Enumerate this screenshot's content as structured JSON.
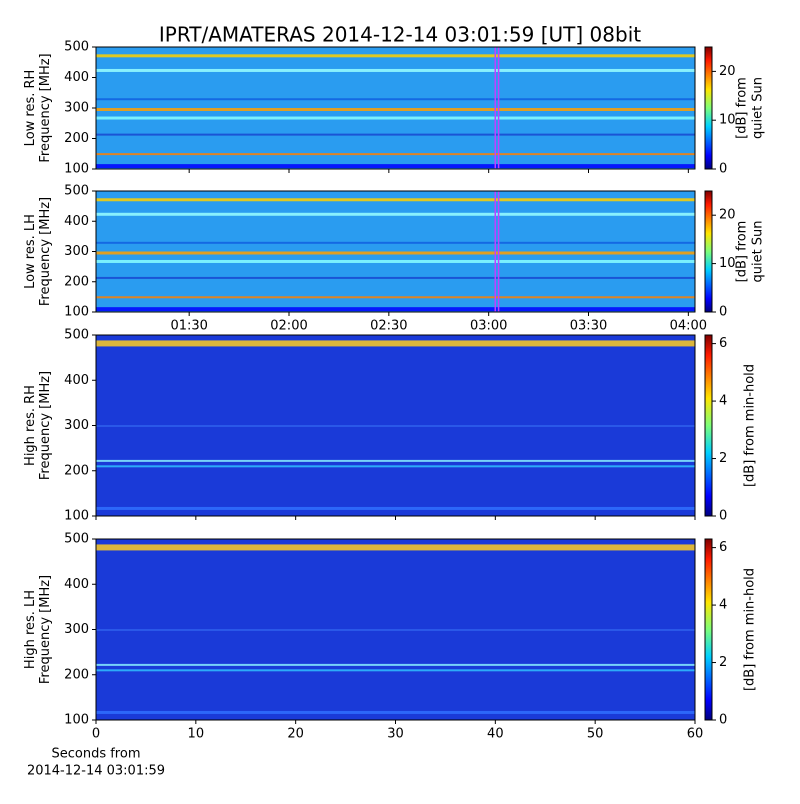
{
  "chart_data": [
    {
      "type": "spectrogram",
      "title": "IPRT/AMATERAS 2014-12-14 03:01:59 [UT]   08bit",
      "ylabel": [
        "Low res. RH",
        "Frequency [MHz]"
      ],
      "ylim": [
        100,
        500
      ],
      "yticks": [
        100,
        200,
        300,
        400,
        500
      ],
      "xlim": [
        62,
        242
      ],
      "xticks": [
        90,
        120,
        150,
        180,
        210,
        240
      ],
      "xticklabels": false,
      "vlines": [
        181.98,
        182.98
      ],
      "vline_color": "#c040ff",
      "background": "#2a9cf0",
      "colorbar": {
        "lim": [
          0,
          25
        ],
        "ticks": [
          0,
          10,
          20
        ],
        "label": [
          "[dB] from",
          "quiet Sun"
        ],
        "colormap": "jet"
      }
    },
    {
      "type": "spectrogram",
      "ylabel": [
        "Low res. LH",
        "Frequency [MHz]"
      ],
      "ylim": [
        100,
        500
      ],
      "yticks": [
        100,
        200,
        300,
        400,
        500
      ],
      "xlim": [
        62,
        242
      ],
      "xticks": [
        {
          "value": 90,
          "label": "01:30"
        },
        {
          "value": 120,
          "label": "02:00"
        },
        {
          "value": 150,
          "label": "02:30"
        },
        {
          "value": 180,
          "label": "03:00"
        },
        {
          "value": 210,
          "label": "03:30"
        },
        {
          "value": 240,
          "label": "04:00"
        }
      ],
      "xticklabels": true,
      "vlines": [
        181.98,
        182.98
      ],
      "vline_color": "#c040ff",
      "background": "#2a9cf0",
      "colorbar": {
        "lim": [
          0,
          25
        ],
        "ticks": [
          0,
          10,
          20
        ],
        "label": [
          "[dB] from",
          "quiet Sun"
        ],
        "colormap": "jet"
      }
    },
    {
      "type": "spectrogram",
      "ylabel": [
        "High res. RH",
        "Frequency [MHz]"
      ],
      "ylim": [
        100,
        500
      ],
      "yticks": [
        100,
        200,
        300,
        400,
        500
      ],
      "xlim": [
        0,
        60
      ],
      "xticks": [
        0,
        10,
        20,
        30,
        40,
        50,
        60
      ],
      "xticklabels": false,
      "background": "#1a3ad8",
      "colorbar": {
        "lim": [
          0,
          6.3
        ],
        "ticks": [
          0,
          2,
          4,
          6
        ],
        "label": [
          "[dB] from min-hold"
        ],
        "colormap": "jet"
      }
    },
    {
      "type": "spectrogram",
      "ylabel": [
        "High res. LH",
        "Frequency [MHz]"
      ],
      "ylim": [
        100,
        500
      ],
      "yticks": [
        100,
        200,
        300,
        400,
        500
      ],
      "xlim": [
        0,
        60
      ],
      "xticks": [
        0,
        10,
        20,
        30,
        40,
        50,
        60
      ],
      "xticklabels": true,
      "xlabel": [
        "Seconds from",
        "2014-12-14 03:01:59"
      ],
      "background": "#1a3ad8",
      "colorbar": {
        "lim": [
          0,
          6.3
        ],
        "ticks": [
          0,
          2,
          4,
          6
        ],
        "label": [
          "[dB] from min-hold"
        ],
        "colormap": "jet"
      }
    }
  ]
}
